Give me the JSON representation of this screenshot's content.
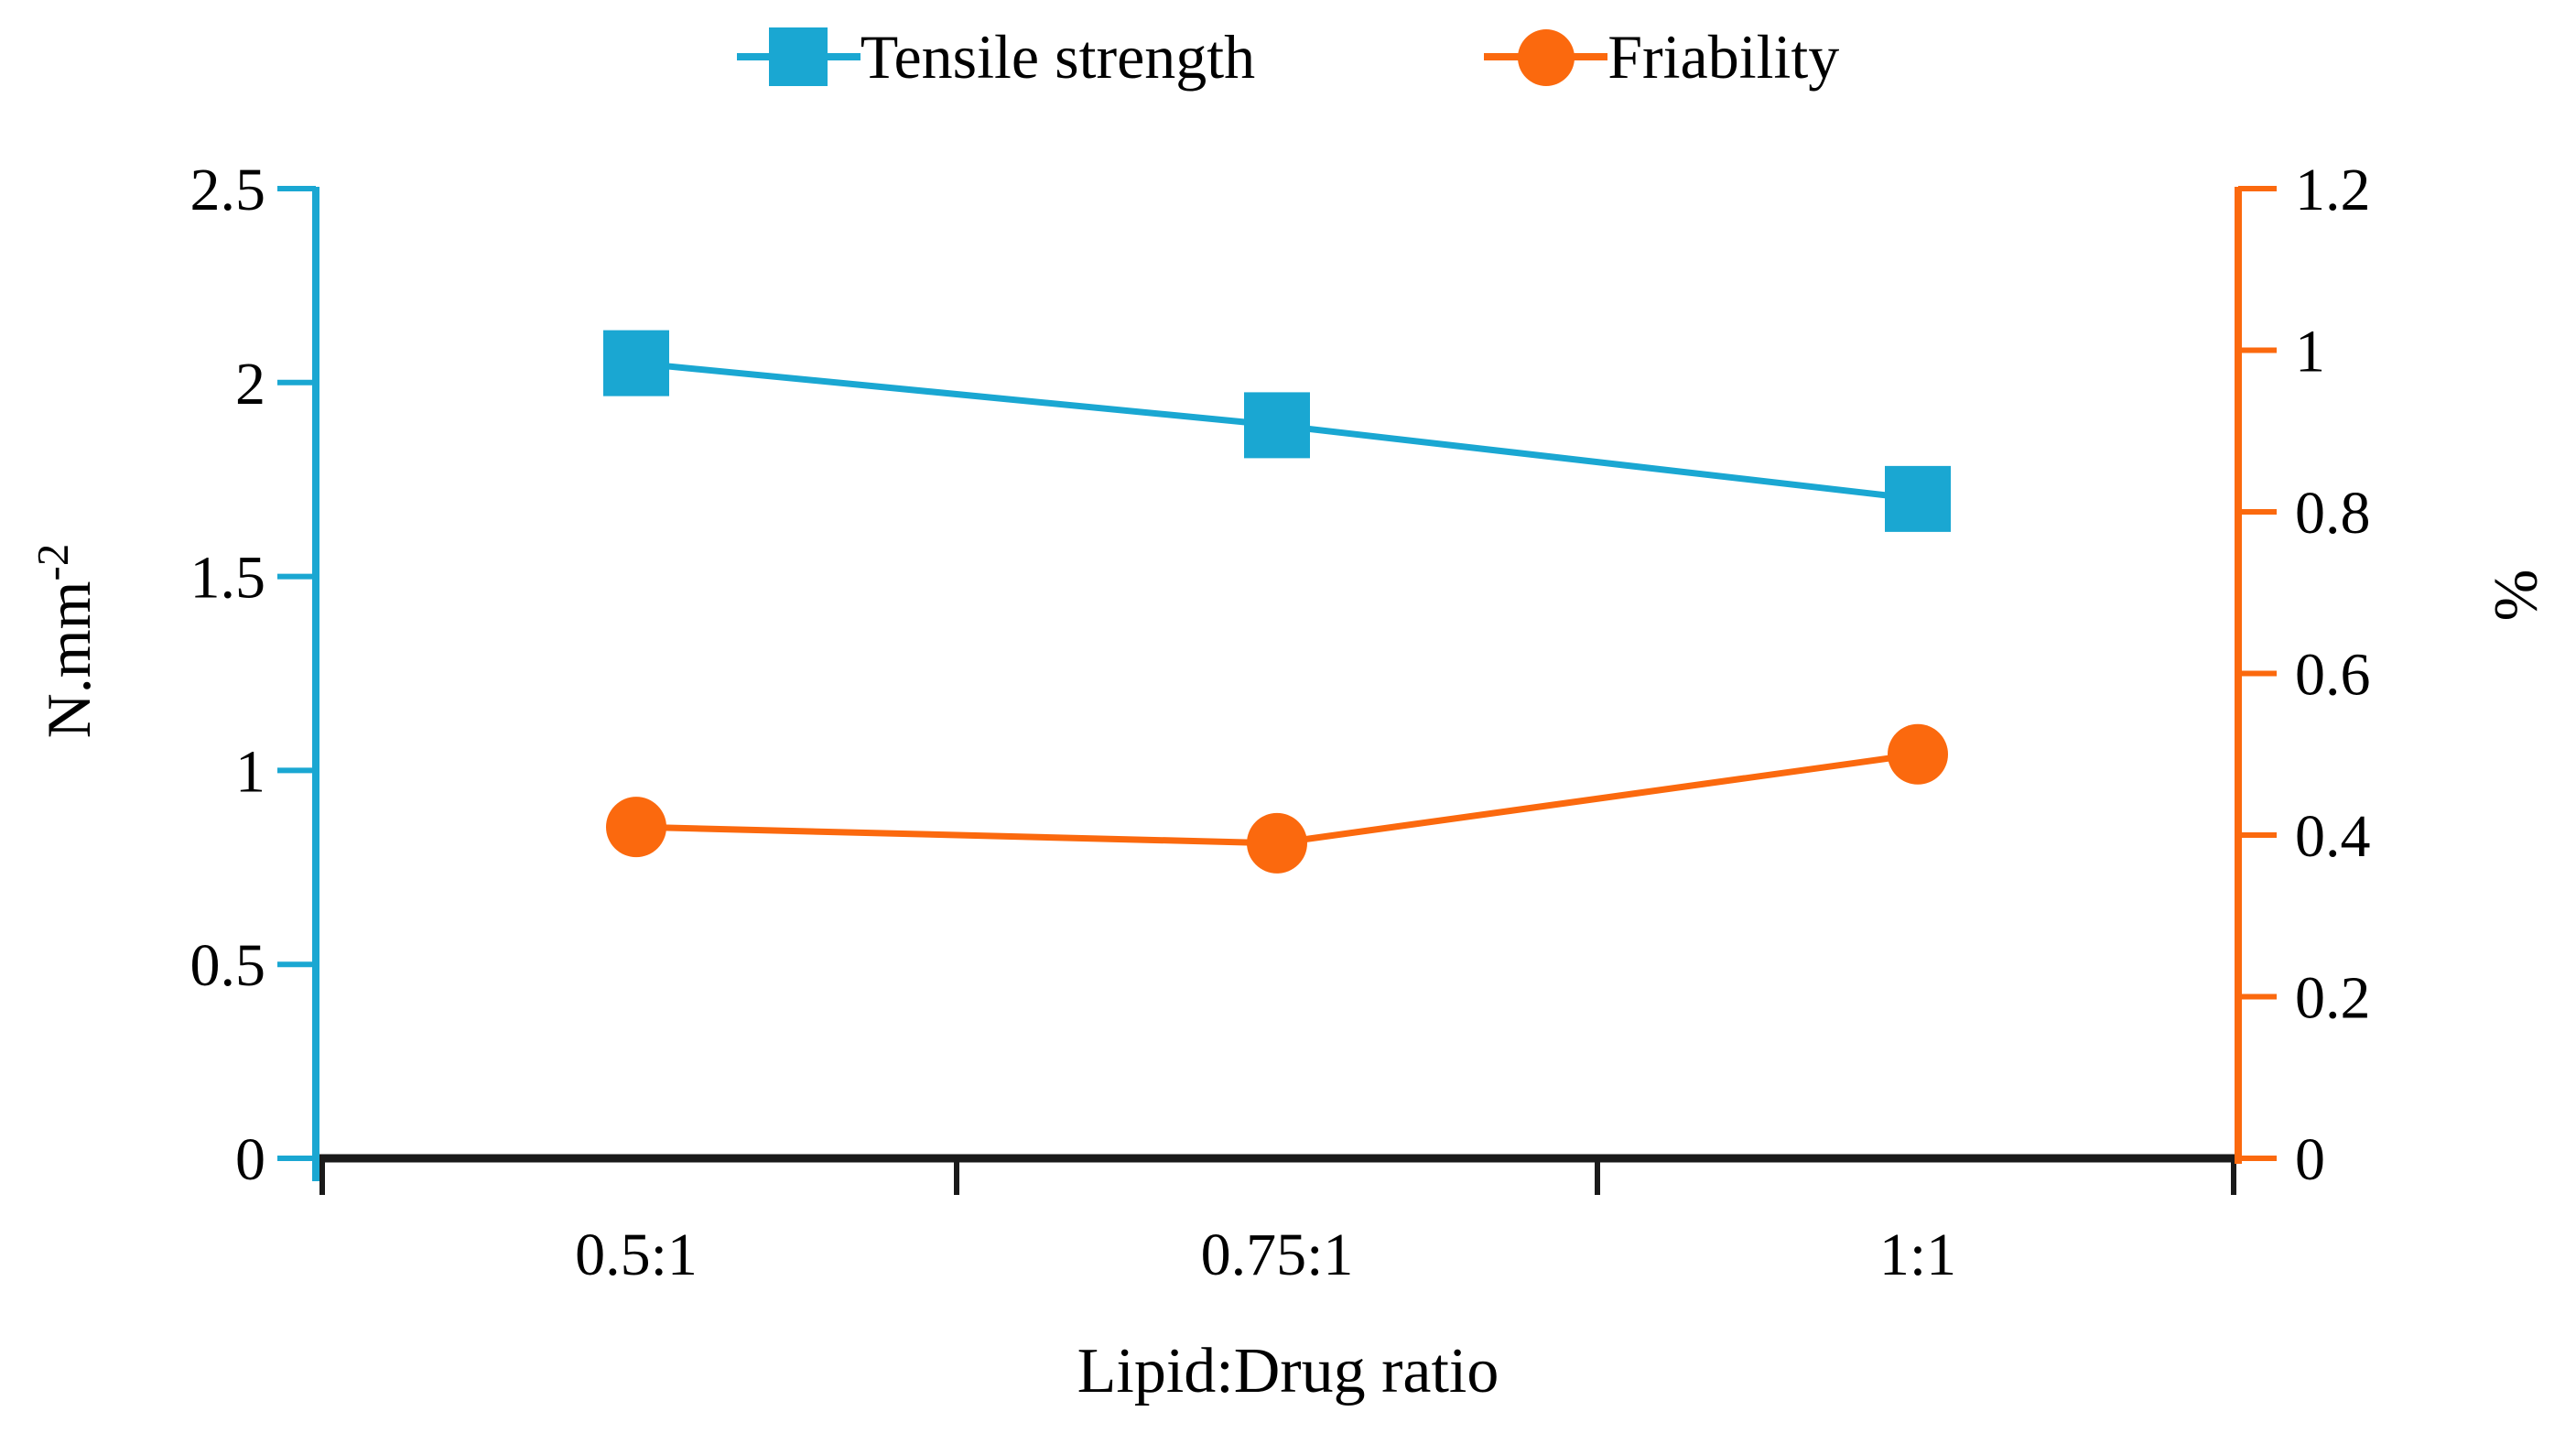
{
  "chart_data": {
    "type": "line",
    "title": "",
    "categories": [
      "0.5:1",
      "0.75:1",
      "1:1"
    ],
    "xlabel": "Lipid:Drug ratio",
    "ylabel_left": "N.mm",
    "ylabel_left_sup": "-2",
    "ylabel_right": "%",
    "grid": false,
    "legend_position": "top",
    "x_axis_color": "#1a1a1a",
    "axis_left": {
      "min": 0,
      "max": 2.5,
      "tick_values": [
        0,
        0.5,
        1,
        1.5,
        2,
        2.5
      ],
      "tick_labels": [
        "0",
        "0.5",
        "1",
        "1.5",
        "2",
        "2.5"
      ],
      "color": "#1aa7d2"
    },
    "axis_right": {
      "min": 0,
      "max": 1.2,
      "tick_values": [
        0,
        0.2,
        0.4,
        0.6,
        0.8,
        1,
        1.2
      ],
      "tick_labels": [
        "0",
        "0.2",
        "0.4",
        "0.6",
        "0.8",
        "1",
        "1.2"
      ],
      "color": "#fb690e"
    },
    "series": [
      {
        "name": "Tensile strength",
        "axis": "left",
        "marker": "square",
        "color": "#1aa7d2",
        "values": [
          2.05,
          1.89,
          1.7
        ]
      },
      {
        "name": "Friability",
        "axis": "right",
        "marker": "circle",
        "color": "#fb690e",
        "values": [
          0.41,
          0.39,
          0.5
        ]
      }
    ]
  }
}
